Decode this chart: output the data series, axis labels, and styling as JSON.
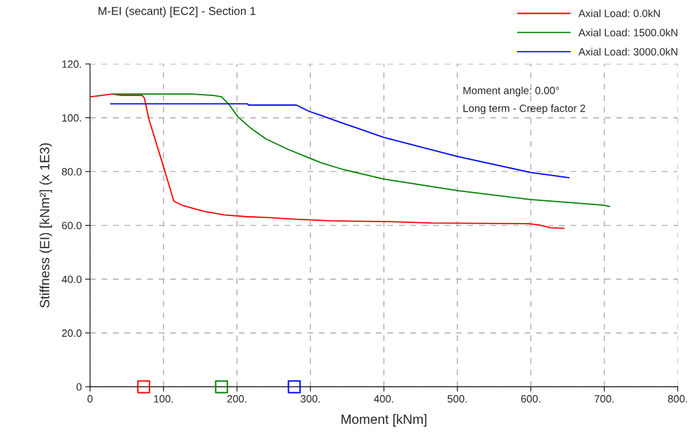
{
  "chart_data": {
    "type": "line",
    "title": "M-EI (secant) [EC2] - Section 1",
    "xlabel": "Moment [kNm]",
    "ylabel": "Stiffness (EI) [kNm²] (x 1E3)",
    "annotations": [
      "Moment angle: 0.00°",
      "Long term - Creep factor 2"
    ],
    "series": [
      {
        "name": "Axial Load: 0.0kN",
        "color": "#ff0000",
        "x": [
          1,
          30,
          43,
          71,
          74,
          80,
          102,
          114,
          127,
          155,
          183,
          214,
          242,
          270,
          326,
          408,
          464,
          597,
          612,
          627,
          645
        ],
        "values": [
          107.8,
          108.8,
          108.3,
          108.3,
          107.3,
          99.6,
          80,
          69.0,
          67.3,
          65.2,
          63.9,
          63.2,
          62.9,
          62.4,
          61.7,
          61.4,
          60.9,
          60.6,
          60.1,
          59.1,
          58.9
        ]
      },
      {
        "name": "Axial Load: 1500.0kN",
        "color": "#008000",
        "x": [
          32,
          139,
          168,
          179,
          189,
          201,
          218,
          239,
          270,
          298,
          314,
          344,
          400,
          500,
          599,
          699,
          707
        ],
        "values": [
          108.8,
          108.8,
          108.3,
          107.8,
          105,
          100.4,
          96.3,
          92.2,
          88.2,
          85.1,
          83.3,
          80.8,
          77.2,
          72.9,
          69.6,
          67.5,
          67.0
        ]
      },
      {
        "name": "Axial Load: 3000.0kN",
        "color": "#0000ff",
        "x": [
          28,
          214,
          216,
          281,
          298,
          314,
          344,
          400,
          500,
          599,
          652
        ],
        "values": [
          105.2,
          105.2,
          104.7,
          104.7,
          102.4,
          100.9,
          98.0,
          92.7,
          85.6,
          79.7,
          77.7
        ]
      },
      {
        "type": "scatter",
        "marker": "square",
        "color": "#ff0000",
        "x": [
          73
        ],
        "values": [
          0
        ]
      },
      {
        "type": "scatter",
        "marker": "square",
        "color": "#008000",
        "x": [
          179
        ],
        "values": [
          0
        ]
      },
      {
        "type": "scatter",
        "marker": "square",
        "color": "#0000ff",
        "x": [
          278
        ],
        "values": [
          0
        ]
      }
    ],
    "xlim": [
      0,
      800
    ],
    "ylim": [
      0,
      120
    ],
    "xticks": [
      0,
      {
        "value": 100,
        "label": "100."
      },
      {
        "value": 200,
        "label": "200."
      },
      {
        "value": 300,
        "label": "300."
      },
      {
        "value": 400,
        "label": "400."
      },
      {
        "value": 500,
        "label": "500."
      },
      {
        "value": 600,
        "label": "600."
      },
      {
        "value": 700,
        "label": "700."
      },
      {
        "value": 800,
        "label": "800."
      }
    ],
    "yticks": [
      0,
      {
        "value": 20,
        "label": "20.0"
      },
      {
        "value": 40,
        "label": "40.0"
      },
      {
        "value": 60,
        "label": "60.0"
      },
      {
        "value": 80,
        "label": "80.0"
      },
      {
        "value": 100,
        "label": "100."
      },
      {
        "value": 120,
        "label": "120."
      }
    ],
    "grid": true,
    "legend": "top right",
    "line_style": "solid"
  }
}
